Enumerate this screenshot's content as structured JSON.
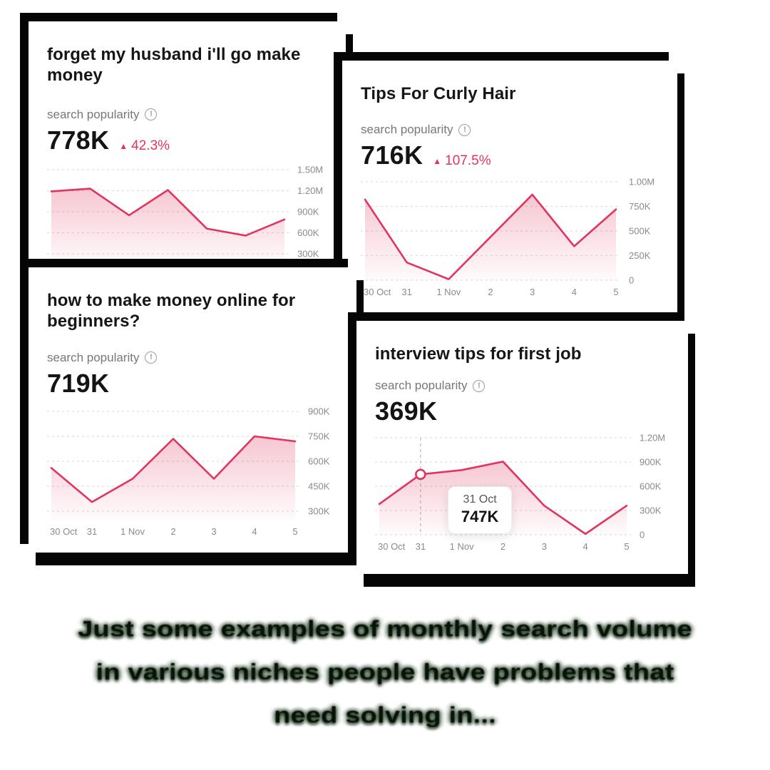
{
  "cards": [
    {
      "title": "forget my husband i'll go make money",
      "metric_label": "search popularity",
      "value": "778K",
      "change": "42.3%"
    },
    {
      "title": "Tips For Curly Hair",
      "metric_label": "search popularity",
      "value": "716K",
      "change": "107.5%"
    },
    {
      "title": "how to make money online for beginners?",
      "metric_label": "search popularity",
      "value": "719K",
      "change": null
    },
    {
      "title": "interview tips for first job",
      "metric_label": "search popularity",
      "value": "369K",
      "change": null
    }
  ],
  "chart_data": [
    {
      "type": "area",
      "title": "forget my husband i'll go make money",
      "x": [],
      "y_ticks": [
        {
          "label": "1.50M",
          "value": 1500
        },
        {
          "label": "1.20M",
          "value": 1200
        },
        {
          "label": "900K",
          "value": 900
        },
        {
          "label": "600K",
          "value": 600
        },
        {
          "label": "300K",
          "value": 300
        }
      ],
      "units": "K",
      "values_k": [
        1190,
        1230,
        850,
        1210,
        660,
        560,
        790
      ],
      "grid": "dashed",
      "legend": "none"
    },
    {
      "type": "area",
      "title": "Tips For Curly Hair",
      "x": [
        "30 Oct",
        "31",
        "1 Nov",
        "2",
        "3",
        "4",
        "5"
      ],
      "y_ticks": [
        {
          "label": "1.00M",
          "value": 1000
        },
        {
          "label": "750K",
          "value": 750
        },
        {
          "label": "500K",
          "value": 500
        },
        {
          "label": "250K",
          "value": 250
        },
        {
          "label": "0",
          "value": 0
        }
      ],
      "units": "K",
      "values_k": [
        820,
        180,
        10,
        440,
        870,
        345,
        720
      ],
      "grid": "dashed",
      "legend": "none"
    },
    {
      "type": "area",
      "title": "how to make money online for beginners?",
      "x": [
        "30 Oct",
        "31",
        "1 Nov",
        "2",
        "3",
        "4",
        "5"
      ],
      "y_ticks": [
        {
          "label": "900K",
          "value": 900
        },
        {
          "label": "750K",
          "value": 750
        },
        {
          "label": "600K",
          "value": 600
        },
        {
          "label": "450K",
          "value": 450
        },
        {
          "label": "300K",
          "value": 300
        }
      ],
      "units": "K",
      "values_k": [
        560,
        355,
        495,
        735,
        495,
        750,
        720
      ],
      "grid": "dashed",
      "legend": "none"
    },
    {
      "type": "area",
      "title": "interview tips for first job",
      "x": [
        "30 Oct",
        "31",
        "1 Nov",
        "2",
        "3",
        "4",
        "5"
      ],
      "y_ticks": [
        {
          "label": "1.20M",
          "value": 1200
        },
        {
          "label": "900K",
          "value": 900
        },
        {
          "label": "600K",
          "value": 600
        },
        {
          "label": "300K",
          "value": 300
        },
        {
          "label": "0",
          "value": 0
        }
      ],
      "units": "K",
      "values_k": [
        380,
        747,
        800,
        905,
        360,
        10,
        360
      ],
      "tooltip": {
        "date": "31 Oct",
        "value": "747K",
        "point_index": 1
      },
      "grid": "dashed",
      "legend": "none"
    }
  ],
  "icons": {
    "info": "!",
    "up_arrow": "▲"
  },
  "colors": {
    "line": "#e0355e",
    "fill_top": "rgba(224,53,94,0.30)",
    "grid": "#dedee2",
    "axis_text": "#8a8a90",
    "title": "#161616",
    "metric_label": "#77777d",
    "change": "#e0355e",
    "card_bg": "#ffffff",
    "shadow": "#050505",
    "caption": "#0a110a"
  },
  "caption": {
    "lines": [
      "Just some examples of monthly search volume",
      "in various niches people have problems that",
      "need solving in..."
    ]
  }
}
